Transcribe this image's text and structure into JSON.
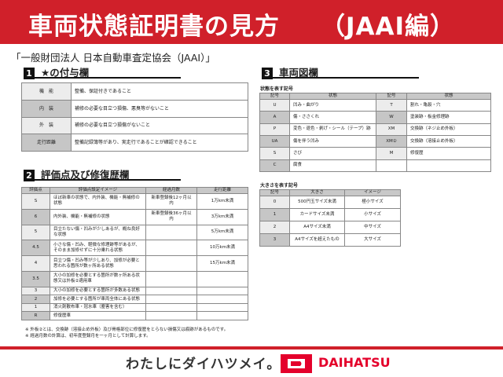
{
  "header": {
    "title": "車両状態証明書の見方",
    "subtitle": "（JAAI編）"
  },
  "organization": "「一般財団法人 日本自動車査定協会（JAAI）」",
  "section1": {
    "num": "1",
    "title": "★の付与欄",
    "rows": [
      [
        "機　能",
        "整備、保証付きであること"
      ],
      [
        "内　装",
        "補修の必要な目立つ損傷、悪臭等がないこと"
      ],
      [
        "外　装",
        "補修の必要な目立つ損傷がないこと"
      ],
      [
        "走行距離",
        "整備記録簿等があり、実走行であることが確認できること"
      ]
    ]
  },
  "section2": {
    "num": "2",
    "title": "評価点及び修復歴欄",
    "headers": [
      "評価点",
      "評価点設定イメージ",
      "経過月数",
      "走行距離"
    ],
    "rows": [
      [
        "S",
        "ほぼ新車の状態で、内外装、機能・無補修の状態",
        "新車登録後12ヶ月以内",
        "1万km未満"
      ],
      [
        "6",
        "内外装、機能・無補修の状態",
        "新車登録後36ヶ月以内",
        "3万km未満"
      ],
      [
        "5",
        "目立たない傷・凹みが少しあるが、概ね良好な状態",
        "",
        "5万km未満"
      ],
      [
        "4.5",
        "小さな傷・凹み、軽微な修理跡等があるが、そのまま加修せずに十分乗れる状態",
        "",
        "10万km未満"
      ],
      [
        "4",
        "目立つ傷・凹み等が少しあり、加修が必要と思われる箇所が数ヶ所ある状態",
        "",
        "15万km未満"
      ],
      [
        "3.5",
        "大小の加修を必要とする箇所が数ヶ所ある状態又は外板②適用車",
        "",
        ""
      ],
      [
        "3",
        "大小の加修を必要とする箇所が多数ある状態",
        "",
        ""
      ],
      [
        "2",
        "加修を必要とする箇所が車両全体にある状態",
        "",
        ""
      ],
      [
        "1",
        "消火剤散布車・冠水車（塵害を含む）",
        "",
        ""
      ],
      [
        "R",
        "修復歴車",
        "",
        ""
      ]
    ]
  },
  "section3": {
    "num": "3",
    "title": "車両図欄",
    "state_label": "状態を表す記号",
    "state_headers": [
      "記号",
      "状態",
      "記号",
      "状態"
    ],
    "state_rows": [
      [
        "U",
        "凹み・曲がり",
        "T",
        "割れ・亀裂・穴"
      ],
      [
        "A",
        "傷・ささくれ",
        "W",
        "塗装跡・板金修理跡"
      ],
      [
        "P",
        "変色・退色・剥げ・シール（テープ）跡",
        "XM",
        "交換跡（ネジ止め外板）"
      ],
      [
        "UA",
        "傷を伴う凹み",
        "XM②",
        "交換跡（溶接止め外板）"
      ],
      [
        "S",
        "さび",
        "M",
        "修復歴"
      ],
      [
        "C",
        "腐食",
        "",
        ""
      ]
    ],
    "size_label": "大きさを表す記号",
    "size_headers": [
      "記号",
      "大きさ",
      "イメージ"
    ],
    "size_rows": [
      [
        "0",
        "500円玉サイズ未満",
        "極小サイズ"
      ],
      [
        "1",
        "カードサイズ未満",
        "小サイズ"
      ],
      [
        "2",
        "A4サイズ未満",
        "中サイズ"
      ],
      [
        "3",
        "A4サイズを超えたもの",
        "大サイズ"
      ]
    ]
  },
  "notes": [
    "※ 外板②とは、交換跡（溶接止め外板）及び骨格部位に修復歴をとらない損傷又は痕跡があるものです。",
    "※ 経過月数の計算は、初年度登録月を一ヶ月として計算します。"
  ],
  "footer": {
    "slogan": "わたしにダイハツメイ。",
    "brand": "DAIHATSU",
    "brand_color": "#e4002b",
    "accent": "#d0202a"
  }
}
